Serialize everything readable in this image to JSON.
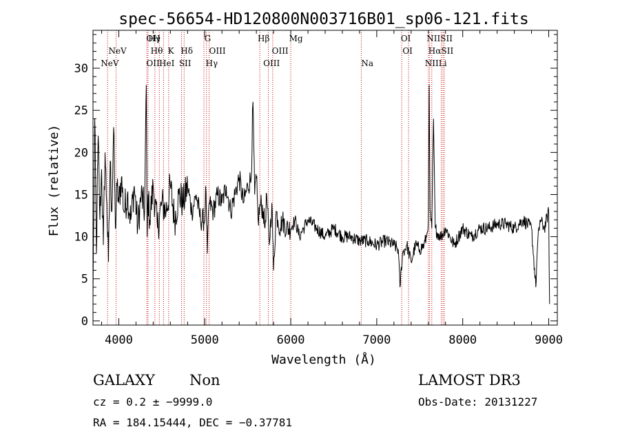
{
  "chart_data": {
    "type": "line",
    "title": "spec-56654-HD120800N003716B01_sp06-121.fits",
    "xlabel": "Wavelength (Å)",
    "ylabel": "Flux (relative)",
    "xlim": [
      3700,
      9100
    ],
    "ylim": [
      -0.5,
      34.5
    ],
    "xticks": [
      4000,
      5000,
      6000,
      7000,
      8000,
      9000
    ],
    "yticks": [
      0,
      5,
      10,
      15,
      20,
      25,
      30
    ],
    "grid": false,
    "series": [
      {
        "name": "flux",
        "x": [
          3700,
          3720,
          3740,
          3760,
          3780,
          3800,
          3820,
          3840,
          3860,
          3880,
          3900,
          3920,
          3940,
          3960,
          3980,
          4000,
          4030,
          4060,
          4100,
          4140,
          4180,
          4220,
          4260,
          4300,
          4320,
          4330,
          4340,
          4360,
          4400,
          4450,
          4500,
          4550,
          4600,
          4650,
          4700,
          4750,
          4800,
          4850,
          4900,
          4950,
          5000,
          5010,
          5030,
          5050,
          5100,
          5150,
          5200,
          5250,
          5300,
          5350,
          5400,
          5450,
          5500,
          5540,
          5560,
          5580,
          5600,
          5620,
          5650,
          5680,
          5700,
          5720,
          5750,
          5780,
          5800,
          5830,
          5850,
          5880,
          5900,
          5950,
          6000,
          6050,
          6100,
          6150,
          6200,
          6300,
          6400,
          6500,
          6600,
          6700,
          6800,
          6900,
          7000,
          7100,
          7200,
          7250,
          7270,
          7300,
          7350,
          7400,
          7450,
          7500,
          7550,
          7580,
          7600,
          7610,
          7620,
          7640,
          7660,
          7680,
          7700,
          7750,
          7800,
          7850,
          7900,
          7950,
          8000,
          8100,
          8200,
          8300,
          8400,
          8500,
          8600,
          8700,
          8800,
          8850,
          8870,
          8900,
          8950,
          9000,
          9010
        ],
        "y": [
          3,
          24,
          8,
          22,
          12,
          18,
          9,
          20,
          14,
          7,
          19,
          13,
          23,
          11,
          16,
          14,
          17,
          13,
          15,
          12,
          16,
          11,
          15,
          13,
          28,
          10,
          15,
          12,
          16,
          11,
          14,
          13,
          16,
          12,
          15,
          14,
          16,
          13,
          15,
          12,
          12,
          16,
          8,
          14,
          13,
          15,
          14,
          16,
          13,
          15,
          17,
          14,
          16,
          17,
          26,
          15,
          17,
          12,
          14,
          13,
          11,
          15,
          9,
          14,
          6,
          13,
          12,
          11,
          12,
          11,
          11,
          12,
          10,
          11,
          12,
          11,
          10,
          11,
          10,
          10,
          9.5,
          9.5,
          9,
          9.5,
          9,
          8.5,
          4,
          8,
          9,
          7,
          9,
          8.5,
          9,
          10,
          12,
          28,
          13,
          11,
          24,
          11,
          10.5,
          10,
          11,
          10,
          9,
          10,
          11,
          10,
          11,
          11,
          11.5,
          11.5,
          11,
          12,
          11,
          4,
          9,
          12,
          11,
          13,
          2
        ]
      }
    ],
    "lines_top_row": [
      {
        "label": "OI",
        "x": 4320
      },
      {
        "label": "Hγ",
        "x": 4343
      },
      {
        "label": "H",
        "x": 4400
      },
      {
        "label": "G",
        "x": 4995
      },
      {
        "label": "Hβ",
        "x": 5615
      },
      {
        "label": "Mg",
        "x": 5980
      },
      {
        "label": "OI",
        "x": 7280
      },
      {
        "label": "NII",
        "x": 7580
      },
      {
        "label": "SII",
        "x": 7740
      }
    ],
    "lines_mid_row": [
      {
        "label": "NeV",
        "x": 3880
      },
      {
        "label": "Hθ",
        "x": 4370
      },
      {
        "label": "K",
        "x": 4570
      },
      {
        "label": "Hδ",
        "x": 4720
      },
      {
        "label": "OIII",
        "x": 5050
      },
      {
        "label": "OIII",
        "x": 5780
      },
      {
        "label": "OI",
        "x": 7300
      },
      {
        "label": "Hα",
        "x": 7600
      },
      {
        "label": "SII",
        "x": 7750
      }
    ],
    "lines_bottom_row": [
      {
        "label": "NeV",
        "x": 3790
      },
      {
        "label": "OII",
        "x": 4320
      },
      {
        "label": "HeI",
        "x": 4470
      },
      {
        "label": "SII",
        "x": 4700
      },
      {
        "label": "Hγ",
        "x": 5010
      },
      {
        "label": "OIII",
        "x": 5680
      },
      {
        "label": "Na",
        "x": 6820
      },
      {
        "label": "NII",
        "x": 7560
      },
      {
        "label": "Li",
        "x": 7720
      }
    ],
    "marker_lines_x": [
      3869,
      3968,
      4326,
      4340,
      4420,
      4471,
      4520,
      4580,
      4730,
      4760,
      4990,
      5020,
      5050,
      5640,
      5740,
      5790,
      6000,
      6820,
      7290,
      7370,
      7600,
      7615,
      7640,
      7750,
      7770,
      7785
    ]
  },
  "footer": {
    "object_class": "GALAXY",
    "subclass": "Non",
    "survey": "LAMOST DR3",
    "redshift_line": "cz = 0.2 ± −9999.0",
    "obs_date_line": "Obs-Date: 20131227",
    "coords_line": "RA = 184.15444, DEC =  −0.37781"
  },
  "colors": {
    "spectrum": "#000000",
    "marker_lines": "#c00000",
    "axes": "#000000"
  }
}
